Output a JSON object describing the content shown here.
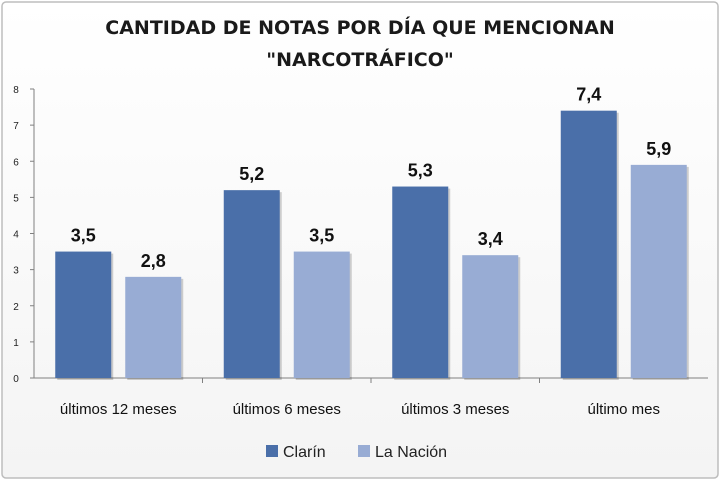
{
  "chart_data": {
    "type": "bar",
    "title_lines": [
      "CANTIDAD DE NOTAS POR DÍA QUE MENCIONAN",
      "\"NARCOTRÁFICO\""
    ],
    "categories": [
      "últimos 12 meses",
      "últimos 6 meses",
      "últimos 3 meses",
      "último mes"
    ],
    "series": [
      {
        "name": "Clarín",
        "values": [
          3.5,
          5.2,
          5.3,
          7.4
        ],
        "labels": [
          "3,5",
          "5,2",
          "5,3",
          "7,4"
        ],
        "color": "#4a6fa9"
      },
      {
        "name": "La Nación",
        "values": [
          2.8,
          3.5,
          3.4,
          5.9
        ],
        "labels": [
          "2,8",
          "3,5",
          "3,4",
          "5,9"
        ],
        "color": "#98acd4"
      }
    ],
    "ylim": [
      0,
      8
    ],
    "yticks": [
      "0",
      "1",
      "2",
      "3",
      "4",
      "5",
      "6",
      "7",
      "8"
    ],
    "grid": false,
    "legend_position": "bottom"
  }
}
